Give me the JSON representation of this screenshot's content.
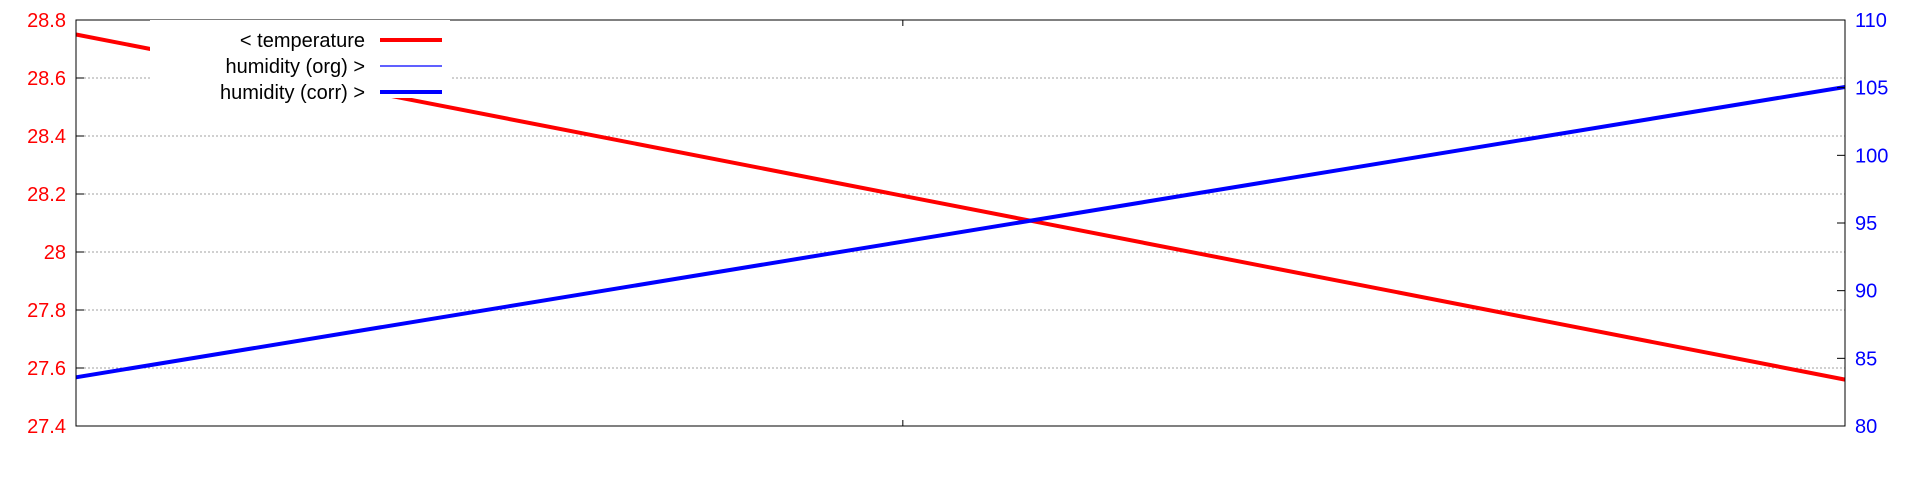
{
  "chart_data": {
    "type": "line",
    "title": "",
    "xlabel": "",
    "grid": true,
    "legend_placement": "top-left",
    "x_range": [
      0,
      1
    ],
    "x_ticks": [
      0.4674
    ],
    "y_left": {
      "label": "",
      "range": [
        27.4,
        28.8
      ],
      "ticks": [
        27.4,
        27.6,
        27.8,
        28,
        28.2,
        28.4,
        28.6,
        28.8
      ],
      "tick_labels": [
        "27.4",
        "27.6",
        "27.8",
        "28",
        "28.2",
        "28.4",
        "28.6",
        "28.8"
      ],
      "color": "#ff0000"
    },
    "y_right": {
      "label": "",
      "range": [
        80,
        110
      ],
      "ticks": [
        80,
        85,
        90,
        95,
        100,
        105,
        110
      ],
      "tick_labels": [
        "80",
        "85",
        "90",
        "95",
        "100",
        "105",
        "110"
      ],
      "color": "#0000ff"
    },
    "series": [
      {
        "name": "< temperature",
        "axis": "left",
        "color": "#ff0000",
        "line_style": "thick",
        "x": [
          0,
          1
        ],
        "y": [
          28.75,
          27.56
        ]
      },
      {
        "name": "humidity (org) >",
        "axis": "right",
        "color": "#0000ff",
        "line_style": "thin",
        "x": [
          0,
          1
        ],
        "y": [
          83.6,
          105.05
        ]
      },
      {
        "name": "humidity (corr) >",
        "axis": "right",
        "color": "#0000ff",
        "line_style": "thick",
        "x": [
          0,
          1
        ],
        "y": [
          83.6,
          105.05
        ]
      }
    ]
  }
}
